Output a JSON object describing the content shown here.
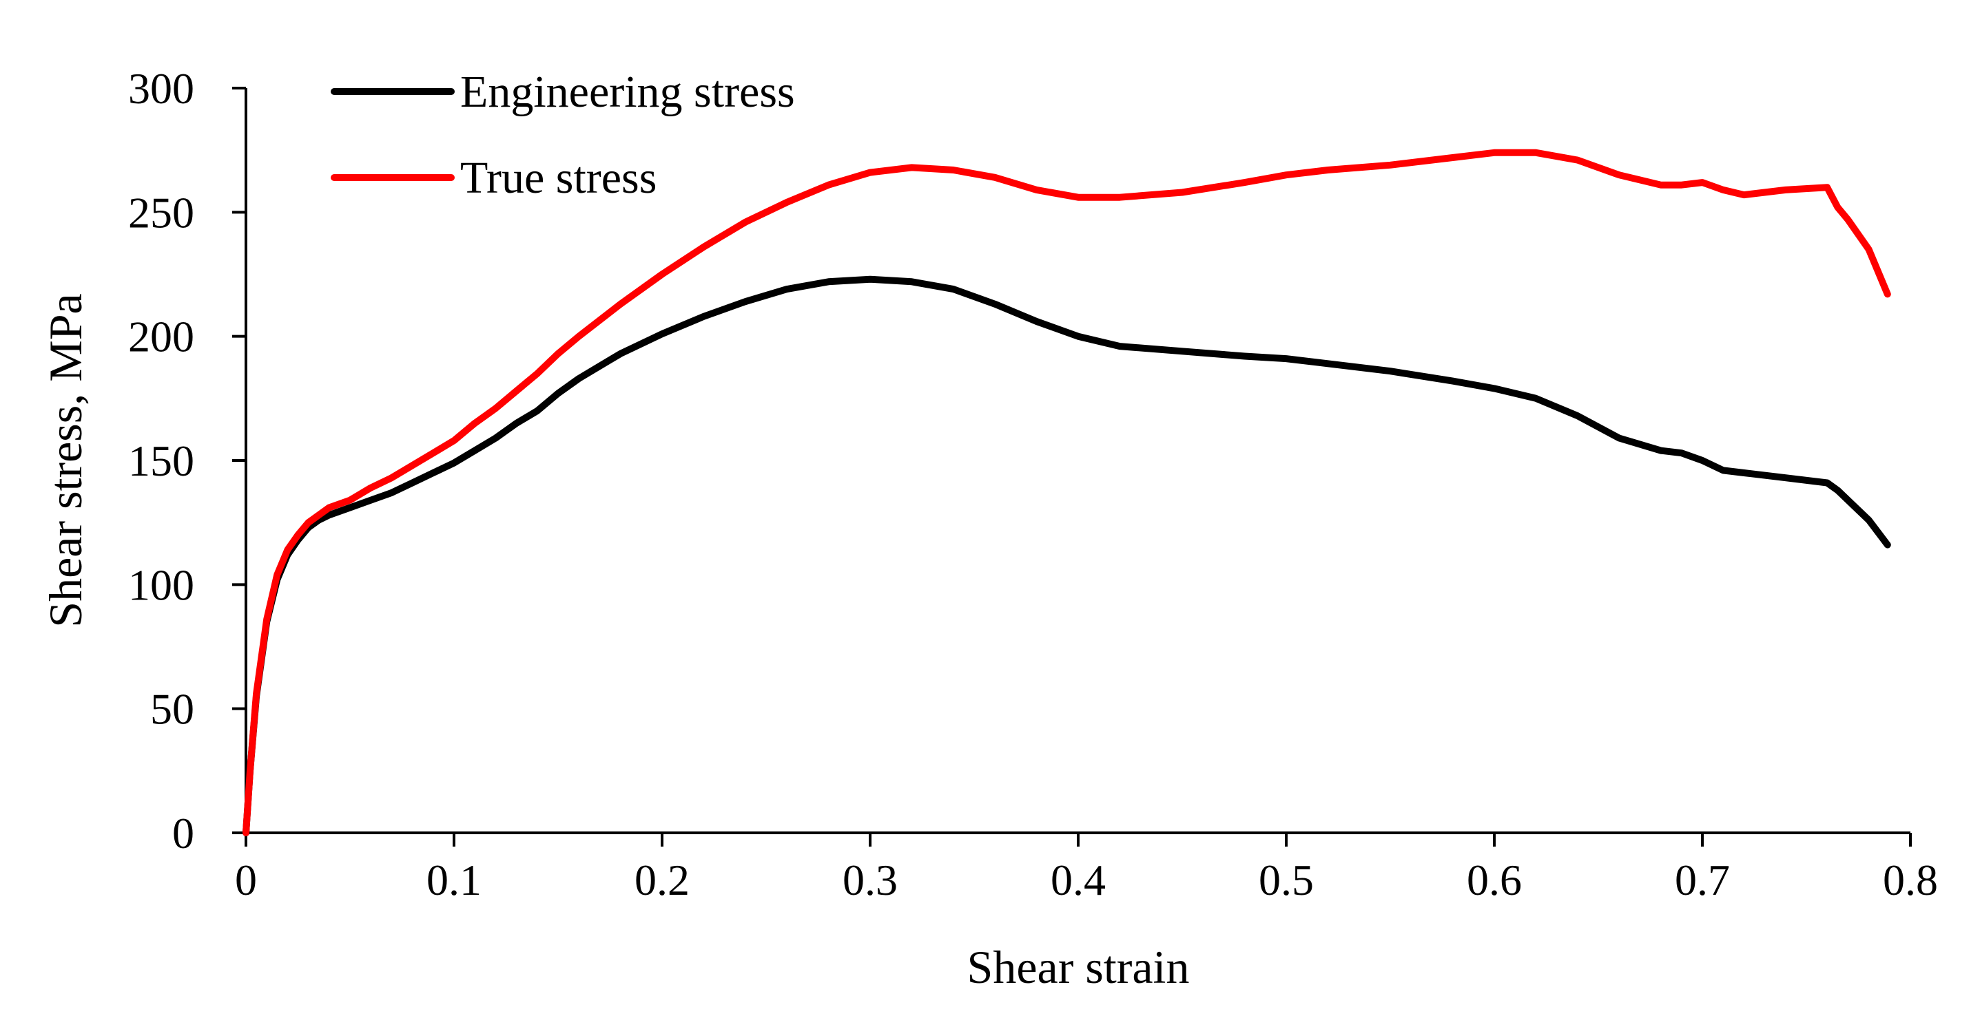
{
  "chart_data": {
    "type": "line",
    "title": "",
    "xlabel": "Shear strain",
    "ylabel": "Shear stress, MPa",
    "xlim": [
      0,
      0.8
    ],
    "ylim": [
      0,
      300
    ],
    "xticks": [
      0,
      0.1,
      0.2,
      0.3,
      0.4,
      0.5,
      0.6,
      0.7,
      0.8
    ],
    "yticks": [
      0,
      50,
      100,
      150,
      200,
      250,
      300
    ],
    "xtick_labels": [
      "0",
      "0.1",
      "0.2",
      "0.3",
      "0.4",
      "0.5",
      "0.6",
      "0.7",
      "0.8"
    ],
    "ytick_labels": [
      "0",
      "50",
      "100",
      "150",
      "200",
      "250",
      "300"
    ],
    "grid": false,
    "legend_position": "top-left",
    "series": [
      {
        "name": "Engineering stress",
        "color": "#000000",
        "x": [
          0,
          0.002,
          0.005,
          0.01,
          0.015,
          0.02,
          0.025,
          0.03,
          0.035,
          0.04,
          0.05,
          0.06,
          0.07,
          0.08,
          0.09,
          0.1,
          0.11,
          0.12,
          0.13,
          0.14,
          0.15,
          0.16,
          0.18,
          0.2,
          0.22,
          0.24,
          0.26,
          0.28,
          0.3,
          0.32,
          0.34,
          0.36,
          0.38,
          0.4,
          0.42,
          0.45,
          0.48,
          0.5,
          0.52,
          0.55,
          0.58,
          0.6,
          0.62,
          0.64,
          0.66,
          0.68,
          0.69,
          0.7,
          0.71,
          0.72,
          0.74,
          0.76,
          0.765,
          0.77,
          0.78,
          0.789
        ],
        "y": [
          0,
          25,
          55,
          85,
          102,
          112,
          118,
          123,
          126,
          128,
          131,
          134,
          137,
          141,
          145,
          149,
          154,
          159,
          165,
          170,
          177,
          183,
          193,
          201,
          208,
          214,
          219,
          222,
          223,
          222,
          219,
          213,
          206,
          200,
          196,
          194,
          192,
          191,
          189,
          186,
          182,
          179,
          175,
          168,
          159,
          154,
          153,
          150,
          146,
          145,
          143,
          141,
          138,
          134,
          126,
          116
        ]
      },
      {
        "name": "True stress",
        "color": "#ff0000",
        "x": [
          0,
          0.002,
          0.005,
          0.01,
          0.015,
          0.02,
          0.025,
          0.03,
          0.035,
          0.04,
          0.05,
          0.06,
          0.07,
          0.08,
          0.09,
          0.1,
          0.11,
          0.12,
          0.13,
          0.14,
          0.15,
          0.16,
          0.18,
          0.2,
          0.22,
          0.24,
          0.26,
          0.28,
          0.3,
          0.32,
          0.34,
          0.36,
          0.38,
          0.4,
          0.42,
          0.45,
          0.48,
          0.5,
          0.52,
          0.55,
          0.58,
          0.6,
          0.62,
          0.64,
          0.66,
          0.68,
          0.69,
          0.7,
          0.71,
          0.72,
          0.74,
          0.76,
          0.765,
          0.77,
          0.78,
          0.789
        ],
        "y": [
          0,
          25,
          56,
          86,
          104,
          114,
          120,
          125,
          128,
          131,
          134,
          139,
          143,
          148,
          153,
          158,
          165,
          171,
          178,
          185,
          193,
          200,
          213,
          225,
          236,
          246,
          254,
          261,
          266,
          268,
          267,
          264,
          259,
          256,
          256,
          258,
          262,
          265,
          267,
          269,
          272,
          274,
          274,
          271,
          265,
          261,
          261,
          262,
          259,
          257,
          259,
          260,
          252,
          247,
          235,
          217
        ]
      }
    ]
  }
}
